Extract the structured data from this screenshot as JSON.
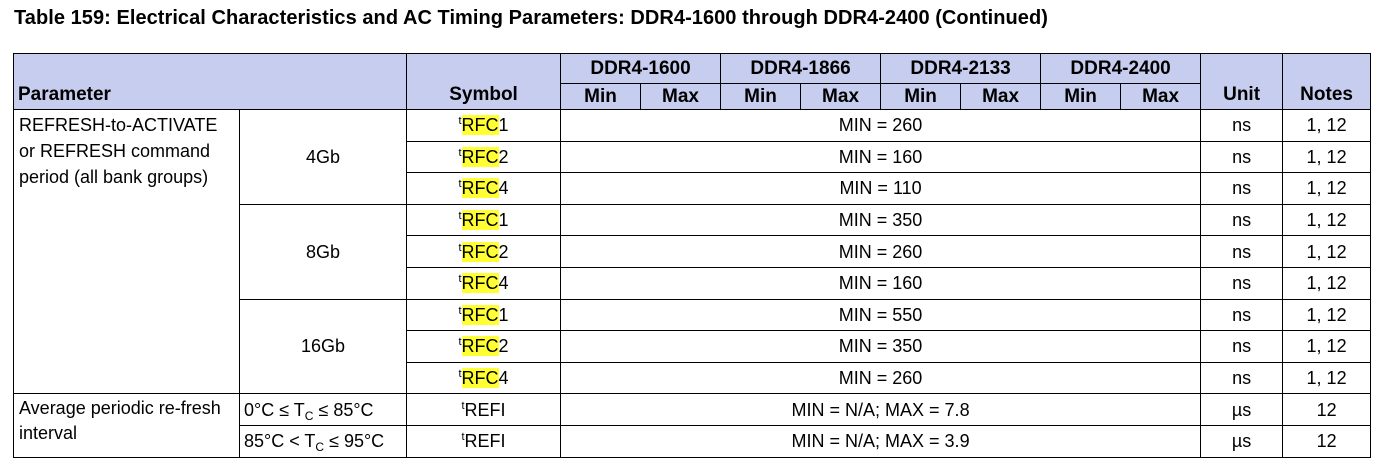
{
  "title": "Table 159: Electrical Characteristics and AC Timing Parameters: DDR4-1600 through DDR4-2400 (Continued)",
  "headers": {
    "parameter": "Parameter",
    "symbol": "Symbol",
    "speeds": [
      "DDR4-1600",
      "DDR4-1866",
      "DDR4-2133",
      "DDR4-2400"
    ],
    "min": "Min",
    "max": "Max",
    "unit": "Unit",
    "notes": "Notes"
  },
  "refresh": {
    "parameter": "REFRESH-to-ACTIVATE or REFRESH command period (all bank groups)",
    "groups": [
      {
        "density": "4Gb",
        "rows": [
          {
            "sym_prefix": "t",
            "sym_main": "RFC",
            "sym_suffix": "1",
            "value": "MIN = 260",
            "unit": "ns",
            "notes": "1, 12"
          },
          {
            "sym_prefix": "t",
            "sym_main": "RFC",
            "sym_suffix": "2",
            "value": "MIN = 160",
            "unit": "ns",
            "notes": "1, 12"
          },
          {
            "sym_prefix": "t",
            "sym_main": "RFC",
            "sym_suffix": "4",
            "value": "MIN = 110",
            "unit": "ns",
            "notes": "1, 12"
          }
        ]
      },
      {
        "density": "8Gb",
        "rows": [
          {
            "sym_prefix": "t",
            "sym_main": "RFC",
            "sym_suffix": "1",
            "value": "MIN = 350",
            "unit": "ns",
            "notes": "1, 12"
          },
          {
            "sym_prefix": "t",
            "sym_main": "RFC",
            "sym_suffix": "2",
            "value": "MIN = 260",
            "unit": "ns",
            "notes": "1, 12"
          },
          {
            "sym_prefix": "t",
            "sym_main": "RFC",
            "sym_suffix": "4",
            "value": "MIN = 160",
            "unit": "ns",
            "notes": "1, 12"
          }
        ]
      },
      {
        "density": "16Gb",
        "rows": [
          {
            "sym_prefix": "t",
            "sym_main": "RFC",
            "sym_suffix": "1",
            "value": "MIN = 550",
            "unit": "ns",
            "notes": "1, 12"
          },
          {
            "sym_prefix": "t",
            "sym_main": "RFC",
            "sym_suffix": "2",
            "value": "MIN = 350",
            "unit": "ns",
            "notes": "1, 12"
          },
          {
            "sym_prefix": "t",
            "sym_main": "RFC",
            "sym_suffix": "4",
            "value": "MIN = 260",
            "unit": "ns",
            "notes": "1, 12"
          }
        ]
      }
    ]
  },
  "refi": {
    "parameter": "Average periodic re-fresh interval",
    "rows": [
      {
        "cond_pre": "0°C ≤ T",
        "cond_sub": "C",
        "cond_post": " ≤ 85°C",
        "sym_prefix": "t",
        "sym_main": "REFI",
        "value": "MIN = N/A; MAX = 7.8",
        "unit": "µs",
        "notes": "12"
      },
      {
        "cond_pre": "85°C < T",
        "cond_sub": "C",
        "cond_post": " ≤ 95°C",
        "sym_prefix": "t",
        "sym_main": "REFI",
        "value": "MIN = N/A; MAX = 3.9",
        "unit": "µs",
        "notes": "12"
      }
    ]
  }
}
